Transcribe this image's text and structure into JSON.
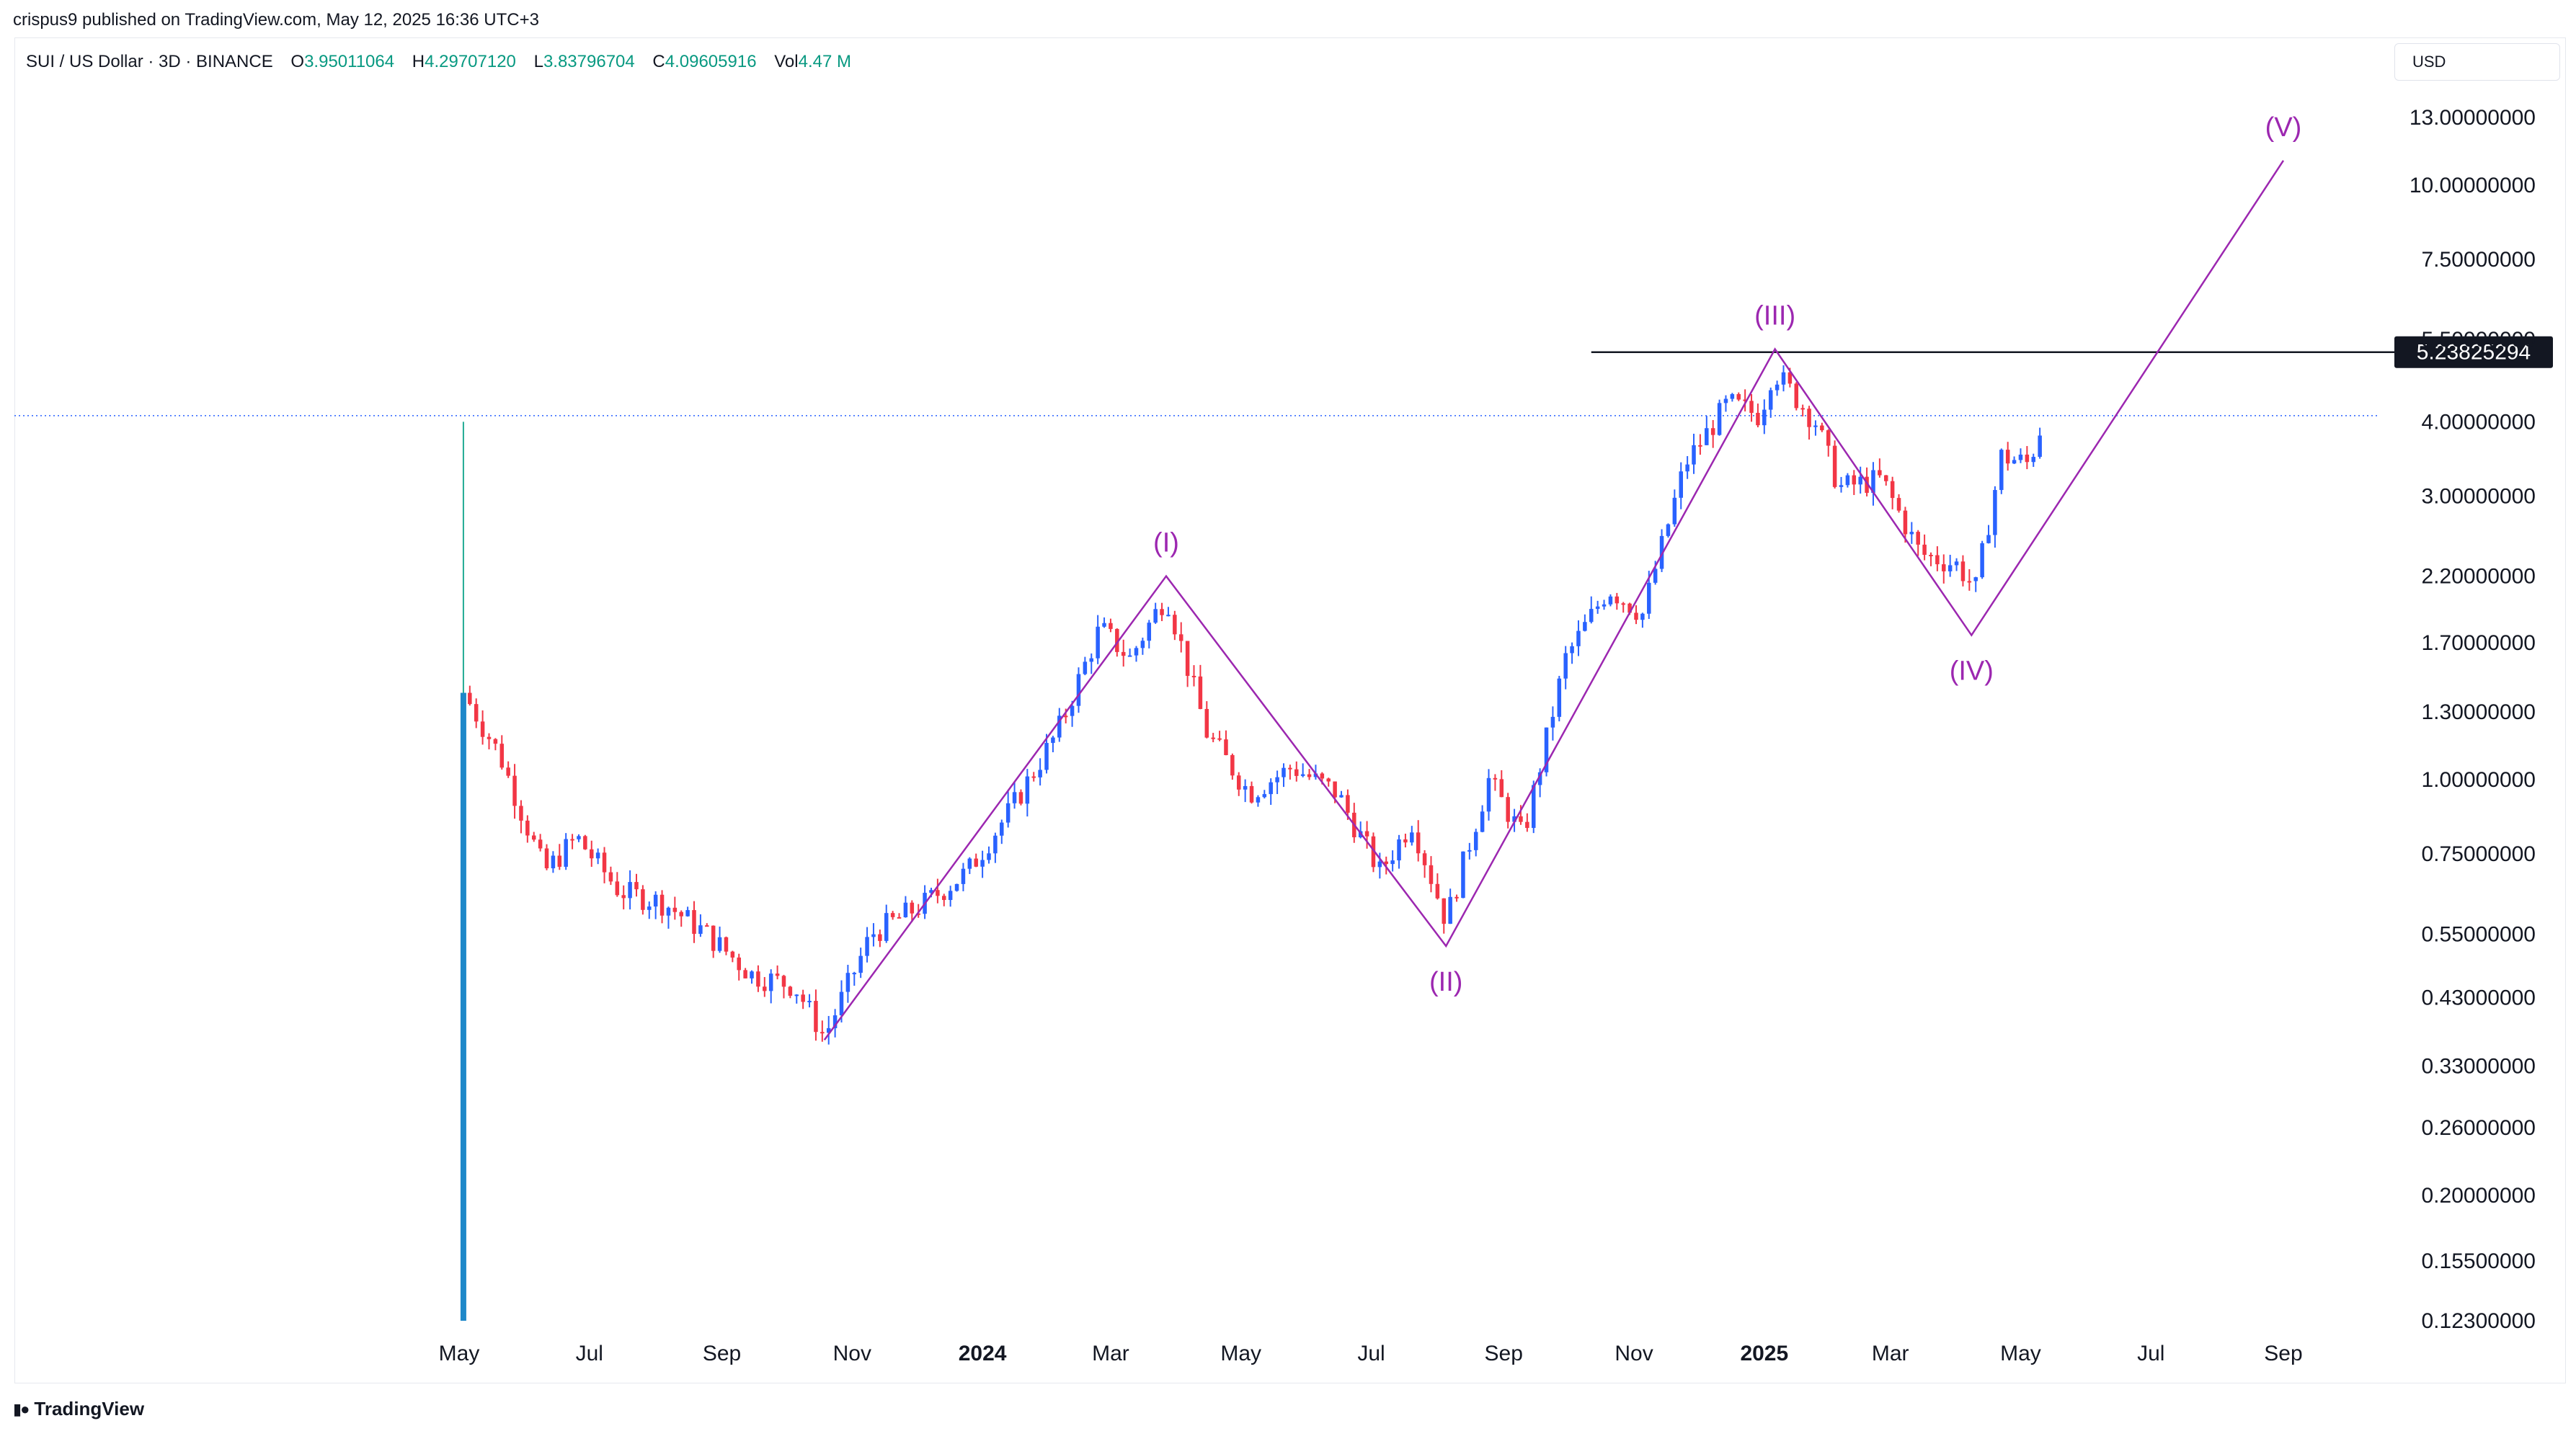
{
  "header": {
    "publish_line": "crispus9 published on TradingView.com, May 12, 2025 16:36 UTC+3"
  },
  "legend": {
    "symbol": "SUI / US Dollar · 3D · BINANCE",
    "open_label": "O",
    "open_value": "3.95011064",
    "high_label": "H",
    "high_value": "4.29707120",
    "low_label": "L",
    "low_value": "3.83796704",
    "close_label": "C",
    "close_value": "4.09605916",
    "vol_label": "Vol",
    "vol_value": "4.47 M"
  },
  "currency": "USD",
  "footer": {
    "brand": "TradingView",
    "logo_icon": "tradingview-logo-icon"
  },
  "colors": {
    "up": "#2962ff",
    "down": "#f23645",
    "wave": "#9c27b0",
    "level": "#131722",
    "grid_dotted": "#2962ff"
  },
  "chart_data": {
    "type": "candlestick",
    "scale": "log",
    "y_ticks": [
      "13.00000000",
      "10.00000000",
      "7.50000000",
      "5.50000000",
      "4.00000000",
      "3.00000000",
      "2.20000000",
      "1.70000000",
      "1.30000000",
      "1.00000000",
      "0.75000000",
      "0.55000000",
      "0.43000000",
      "0.33000000",
      "0.26000000",
      "0.20000000",
      "0.15500000",
      "0.12300000"
    ],
    "x_ticks": [
      {
        "label": "May",
        "date": "2023-05-01",
        "bold": false
      },
      {
        "label": "Jul",
        "date": "2023-07-01",
        "bold": false
      },
      {
        "label": "Sep",
        "date": "2023-09-01",
        "bold": false
      },
      {
        "label": "Nov",
        "date": "2023-11-01",
        "bold": false
      },
      {
        "label": "2024",
        "date": "2024-01-01",
        "bold": true
      },
      {
        "label": "Mar",
        "date": "2024-03-01",
        "bold": false
      },
      {
        "label": "May",
        "date": "2024-05-01",
        "bold": false
      },
      {
        "label": "Jul",
        "date": "2024-07-01",
        "bold": false
      },
      {
        "label": "Sep",
        "date": "2024-09-01",
        "bold": false
      },
      {
        "label": "Nov",
        "date": "2024-11-01",
        "bold": false
      },
      {
        "label": "2025",
        "date": "2025-01-01",
        "bold": true
      },
      {
        "label": "Mar",
        "date": "2025-03-01",
        "bold": false
      },
      {
        "label": "May",
        "date": "2025-05-01",
        "bold": false
      },
      {
        "label": "Jul",
        "date": "2025-07-01",
        "bold": false
      },
      {
        "label": "Sep",
        "date": "2025-09-01",
        "bold": false
      }
    ],
    "price_path": [
      [
        "2023-05-03",
        1.4
      ],
      [
        "2023-05-20",
        1.1
      ],
      [
        "2023-06-10",
        0.7
      ],
      [
        "2023-06-25",
        0.8
      ],
      [
        "2023-07-15",
        0.65
      ],
      [
        "2023-08-05",
        0.62
      ],
      [
        "2023-08-25",
        0.55
      ],
      [
        "2023-09-15",
        0.47
      ],
      [
        "2023-10-05",
        0.45
      ],
      [
        "2023-10-19",
        0.37
      ],
      [
        "2023-11-10",
        0.55
      ],
      [
        "2023-12-05",
        0.62
      ],
      [
        "2023-12-25",
        0.7
      ],
      [
        "2024-01-15",
        0.9
      ],
      [
        "2024-02-05",
        1.2
      ],
      [
        "2024-02-25",
        1.8
      ],
      [
        "2024-03-10",
        1.6
      ],
      [
        "2024-03-27",
        2.05
      ],
      [
        "2024-04-15",
        1.2
      ],
      [
        "2024-05-05",
        0.95
      ],
      [
        "2024-05-25",
        1.05
      ],
      [
        "2024-06-15",
        0.95
      ],
      [
        "2024-07-05",
        0.7
      ],
      [
        "2024-07-20",
        0.85
      ],
      [
        "2024-08-05",
        0.58
      ],
      [
        "2024-08-25",
        1.0
      ],
      [
        "2024-09-10",
        0.8
      ],
      [
        "2024-09-30",
        1.6
      ],
      [
        "2024-10-20",
        2.1
      ],
      [
        "2024-11-05",
        1.9
      ],
      [
        "2024-11-25",
        3.4
      ],
      [
        "2024-12-15",
        4.3
      ],
      [
        "2024-12-30",
        4.1
      ],
      [
        "2025-01-05",
        4.9
      ],
      [
        "2025-01-25",
        4.0
      ],
      [
        "2025-02-05",
        3.1
      ],
      [
        "2025-02-25",
        3.2
      ],
      [
        "2025-03-15",
        2.4
      ],
      [
        "2025-04-01",
        2.3
      ],
      [
        "2025-04-10",
        2.1
      ],
      [
        "2025-04-22",
        3.5
      ],
      [
        "2025-05-05",
        3.4
      ],
      [
        "2025-05-12",
        4.1
      ]
    ],
    "first_candle": {
      "date": "2023-05-03",
      "open": 0.123,
      "high": 4.0,
      "low": 0.123,
      "close": 1.4
    },
    "price_line": {
      "value": 4.09605916,
      "style": "dotted"
    },
    "level_line": {
      "value": 5.23825294,
      "label": "5.23825294",
      "start_date": "2024-10-12"
    },
    "wave_points": [
      {
        "label": "",
        "date": "2023-10-19",
        "value": 0.365
      },
      {
        "label": "(I)",
        "date": "2024-03-27",
        "value": 2.2
      },
      {
        "label": "(II)",
        "date": "2024-08-05",
        "value": 0.525
      },
      {
        "label": "(III)",
        "date": "2025-01-06",
        "value": 5.3
      },
      {
        "label": "(IV)",
        "date": "2025-04-08",
        "value": 1.75
      },
      {
        "label": "(V)",
        "date": "2025-09-01",
        "value": 11.0
      }
    ]
  }
}
